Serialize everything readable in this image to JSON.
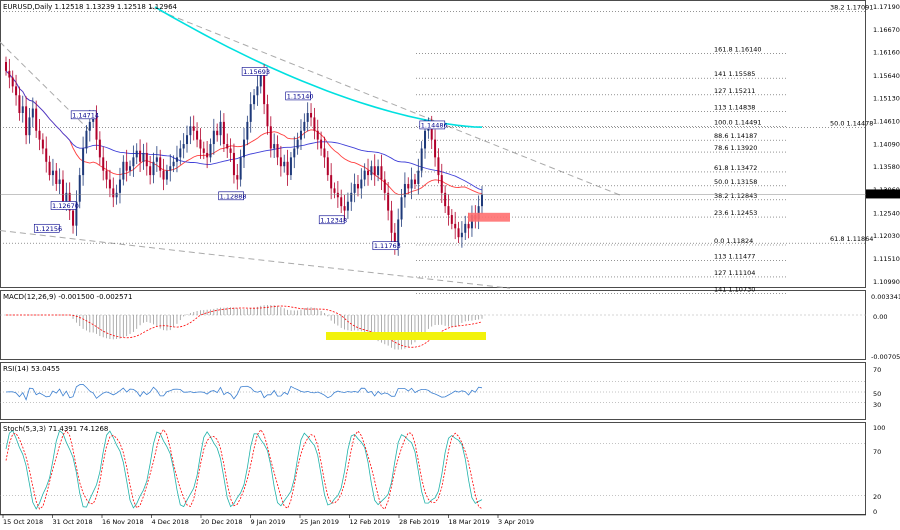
{
  "chart_data": [
    {
      "type": "candlestick",
      "symbol": "EURUSD,Daily",
      "ohlc_readout": "1.12518 1.13239 1.12518 1.12964",
      "ylim": [
        1.1099,
        1.1719
      ],
      "price_ticks": [
        "1.17190",
        "1.16670",
        "1.16160",
        "1.15640",
        "1.15130",
        "1.14610",
        "1.14090",
        "1.13580",
        "1.13060",
        "1.12540",
        "1.12030",
        "1.11510",
        "1.10990"
      ],
      "current_price": "1.12964",
      "x_ticks": [
        "15 Oct 2018",
        "31 Oct 2018",
        "16 Nov 2018",
        "4 Dec 2018",
        "20 Dec 2018",
        "9 Jan 2019",
        "25 Jan 2019",
        "12 Feb 2019",
        "28 Feb 2019",
        "18 Mar 2019",
        "3 Apr 2019"
      ],
      "closes": [
        1.1575,
        1.156,
        1.154,
        1.152,
        1.148,
        1.1495,
        1.143,
        1.147,
        1.149,
        1.144,
        1.142,
        1.14,
        1.137,
        1.134,
        1.135,
        1.132,
        1.133,
        1.128,
        1.13,
        1.126,
        1.1226,
        1.128,
        1.134,
        1.14,
        1.144,
        1.146,
        1.1471,
        1.142,
        1.138,
        1.135,
        1.133,
        1.131,
        1.129,
        1.13,
        1.133,
        1.137,
        1.135,
        1.136,
        1.138,
        1.1395,
        1.137,
        1.139,
        1.136,
        1.134,
        1.137,
        1.138,
        1.135,
        1.133,
        1.135,
        1.136,
        1.137,
        1.138,
        1.14,
        1.141,
        1.143,
        1.145,
        1.144,
        1.142,
        1.14,
        1.139,
        1.138,
        1.141,
        1.144,
        1.143,
        1.146,
        1.141,
        1.14,
        1.139,
        1.134,
        1.133,
        1.138,
        1.142,
        1.146,
        1.15,
        1.152,
        1.154,
        1.1565,
        1.15,
        1.145,
        1.14,
        1.141,
        1.138,
        1.136,
        1.137,
        1.134,
        1.138,
        1.14,
        1.142,
        1.144,
        1.146,
        1.148,
        1.147,
        1.144,
        1.142,
        1.14,
        1.138,
        1.134,
        1.131,
        1.13,
        1.129,
        1.127,
        1.126,
        1.128,
        1.13,
        1.132,
        1.131,
        1.133,
        1.135,
        1.134,
        1.136,
        1.134,
        1.136,
        1.133,
        1.13,
        1.126,
        1.121,
        1.118,
        1.124,
        1.129,
        1.132,
        1.131,
        1.133,
        1.132,
        1.135,
        1.14,
        1.144,
        1.145,
        1.142,
        1.138,
        1.134,
        1.13,
        1.127,
        1.125,
        1.123,
        1.122,
        1.12,
        1.121,
        1.123,
        1.122,
        1.125,
        1.124,
        1.127,
        1.1296
      ],
      "fib_levels": [
        {
          "ratio": "38.2",
          "price": "1.17091",
          "side": "right"
        },
        {
          "ratio": "161.8",
          "price": "1.16140",
          "side": "left"
        },
        {
          "ratio": "141",
          "price": "1.15585",
          "side": "left"
        },
        {
          "ratio": "127",
          "price": "1.15211",
          "side": "left"
        },
        {
          "ratio": "113",
          "price": "1.14838",
          "side": "left"
        },
        {
          "ratio": "100.0",
          "price": "1.14491",
          "side": "left"
        },
        {
          "ratio": "50.0",
          "price": "1.14478",
          "side": "right"
        },
        {
          "ratio": "88.6",
          "price": "1.14187",
          "side": "left"
        },
        {
          "ratio": "78.6",
          "price": "1.13920",
          "side": "left"
        },
        {
          "ratio": "61.8",
          "price": "1.13472",
          "side": "left"
        },
        {
          "ratio": "50.0",
          "price": "1.13158",
          "side": "left"
        },
        {
          "ratio": "38.2",
          "price": "1.12843",
          "side": "left"
        },
        {
          "ratio": "23.6",
          "price": "1.12453",
          "side": "left"
        },
        {
          "ratio": "0.0",
          "price": "1.11824",
          "side": "left"
        },
        {
          "ratio": "61.8",
          "price": "1.11864",
          "side": "right"
        },
        {
          "ratio": "113",
          "price": "1.11477",
          "side": "left"
        },
        {
          "ratio": "127",
          "price": "1.11104",
          "side": "left"
        },
        {
          "ratio": "141",
          "price": "1.10730",
          "side": "left"
        }
      ],
      "price_labels": [
        {
          "text": "1.15693",
          "price": 1.15693,
          "bar": 77
        },
        {
          "text": "1.15140",
          "price": 1.1514,
          "bar": 90
        },
        {
          "text": "1.14714",
          "price": 1.14714,
          "bar": 26
        },
        {
          "text": "1.14486",
          "price": 1.14486,
          "bar": 130
        },
        {
          "text": "1.12670",
          "price": 1.1267,
          "bar": 20
        },
        {
          "text": "1.12888",
          "price": 1.12888,
          "bar": 70
        },
        {
          "text": "1.12348",
          "price": 1.12348,
          "bar": 100
        },
        {
          "text": "1.12156",
          "price": 1.12156,
          "bar": 15
        },
        {
          "text": "1.11763",
          "price": 1.11763,
          "bar": 116
        }
      ],
      "colors": {
        "bull": "#1f3a7a",
        "bear": "#b1002a",
        "ma_fast": "#ff4040",
        "ma_slow": "#4040d8",
        "ma_long": "#00e0e0",
        "dashed": "#aaaaaa",
        "highlight": "#f2f20a",
        "zone": "#ff7070"
      }
    },
    {
      "type": "histogram",
      "title": "MACD(12,26,9) -0.001500 -0.002571",
      "ticks": [
        "0.003341",
        "0.00",
        "-0.007057"
      ]
    },
    {
      "type": "line",
      "title": "RSI(14) 53.0455",
      "ticks": [
        "70",
        "50",
        "30"
      ],
      "ylim": [
        0,
        100
      ]
    },
    {
      "type": "line",
      "title": "Stoch(5,3,3) 71.4391 74.1268",
      "ticks": [
        "100",
        "70",
        "20",
        "0"
      ],
      "ylim": [
        0,
        100
      ]
    }
  ]
}
